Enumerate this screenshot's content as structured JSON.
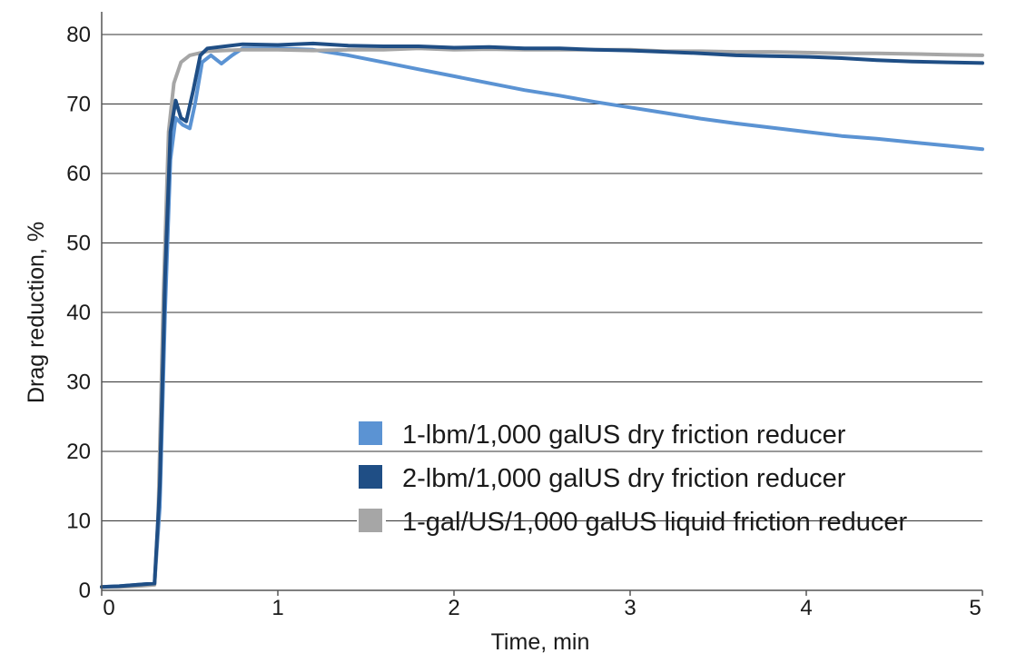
{
  "chart_data": {
    "type": "line",
    "xlabel": "Time, min",
    "ylabel": "Drag reduction, %",
    "xlim": [
      0,
      5
    ],
    "ylim": [
      0,
      80
    ],
    "x_ticks": [
      "0",
      "1",
      "2",
      "3",
      "4",
      "5"
    ],
    "y_ticks": [
      "0",
      "10",
      "20",
      "30",
      "40",
      "50",
      "60",
      "70",
      "80"
    ],
    "grid": "horizontal",
    "legend_position": "center-right",
    "series": [
      {
        "name": "1-lbm/1,000 galUS dry friction reducer",
        "color": "#5b93d3",
        "points": [
          [
            0,
            0.5
          ],
          [
            0.1,
            0.6
          ],
          [
            0.2,
            0.8
          ],
          [
            0.3,
            1
          ],
          [
            0.33,
            12
          ],
          [
            0.36,
            40
          ],
          [
            0.39,
            62
          ],
          [
            0.42,
            68
          ],
          [
            0.46,
            67
          ],
          [
            0.5,
            66.5
          ],
          [
            0.53,
            70
          ],
          [
            0.57,
            76
          ],
          [
            0.62,
            77
          ],
          [
            0.68,
            75.8
          ],
          [
            0.74,
            77
          ],
          [
            0.8,
            78
          ],
          [
            1.0,
            78
          ],
          [
            1.2,
            77.8
          ],
          [
            1.4,
            77
          ],
          [
            1.6,
            76
          ],
          [
            1.8,
            75
          ],
          [
            2.0,
            74
          ],
          [
            2.2,
            73
          ],
          [
            2.4,
            72
          ],
          [
            2.6,
            71.2
          ],
          [
            2.8,
            70.3
          ],
          [
            3.0,
            69.5
          ],
          [
            3.2,
            68.7
          ],
          [
            3.4,
            67.9
          ],
          [
            3.6,
            67.2
          ],
          [
            3.8,
            66.6
          ],
          [
            4.0,
            66
          ],
          [
            4.2,
            65.4
          ],
          [
            4.4,
            65
          ],
          [
            4.6,
            64.5
          ],
          [
            4.8,
            64
          ],
          [
            5.0,
            63.5
          ]
        ]
      },
      {
        "name": "2-lbm/1,000 galUS dry friction reducer",
        "color": "#1f4e85",
        "points": [
          [
            0,
            0.5
          ],
          [
            0.1,
            0.6
          ],
          [
            0.2,
            0.8
          ],
          [
            0.3,
            1
          ],
          [
            0.33,
            15
          ],
          [
            0.36,
            45
          ],
          [
            0.39,
            66
          ],
          [
            0.42,
            70.5
          ],
          [
            0.45,
            68
          ],
          [
            0.48,
            67.5
          ],
          [
            0.52,
            72
          ],
          [
            0.56,
            77
          ],
          [
            0.6,
            78
          ],
          [
            0.7,
            78.3
          ],
          [
            0.8,
            78.6
          ],
          [
            1.0,
            78.5
          ],
          [
            1.2,
            78.7
          ],
          [
            1.4,
            78.4
          ],
          [
            1.6,
            78.3
          ],
          [
            1.8,
            78.3
          ],
          [
            2.0,
            78.1
          ],
          [
            2.2,
            78.2
          ],
          [
            2.4,
            78
          ],
          [
            2.6,
            78
          ],
          [
            2.8,
            77.8
          ],
          [
            3.0,
            77.7
          ],
          [
            3.2,
            77.5
          ],
          [
            3.4,
            77.3
          ],
          [
            3.6,
            77
          ],
          [
            3.8,
            76.9
          ],
          [
            4.0,
            76.8
          ],
          [
            4.2,
            76.6
          ],
          [
            4.4,
            76.3
          ],
          [
            4.6,
            76.1
          ],
          [
            4.8,
            76
          ],
          [
            5.0,
            75.9
          ]
        ]
      },
      {
        "name": "1-gal/US/1,000 galUS liquid friction reducer",
        "color": "#a6a6a6",
        "points": [
          [
            0,
            0.5
          ],
          [
            0.1,
            0.5
          ],
          [
            0.2,
            0.6
          ],
          [
            0.3,
            0.8
          ],
          [
            0.32,
            10
          ],
          [
            0.35,
            42
          ],
          [
            0.38,
            66
          ],
          [
            0.41,
            73
          ],
          [
            0.45,
            76
          ],
          [
            0.5,
            77
          ],
          [
            0.6,
            77.6
          ],
          [
            0.8,
            77.8
          ],
          [
            1.0,
            77.8
          ],
          [
            1.2,
            77.7
          ],
          [
            1.4,
            77.8
          ],
          [
            1.6,
            77.8
          ],
          [
            1.8,
            78
          ],
          [
            2.0,
            77.8
          ],
          [
            2.2,
            77.9
          ],
          [
            2.4,
            77.8
          ],
          [
            2.6,
            77.8
          ],
          [
            2.8,
            77.8
          ],
          [
            3.0,
            77.8
          ],
          [
            3.2,
            77.6
          ],
          [
            3.4,
            77.6
          ],
          [
            3.6,
            77.5
          ],
          [
            3.8,
            77.5
          ],
          [
            4.0,
            77.4
          ],
          [
            4.2,
            77.3
          ],
          [
            4.4,
            77.3
          ],
          [
            4.6,
            77.2
          ],
          [
            4.8,
            77.1
          ],
          [
            5.0,
            77
          ]
        ]
      }
    ]
  }
}
